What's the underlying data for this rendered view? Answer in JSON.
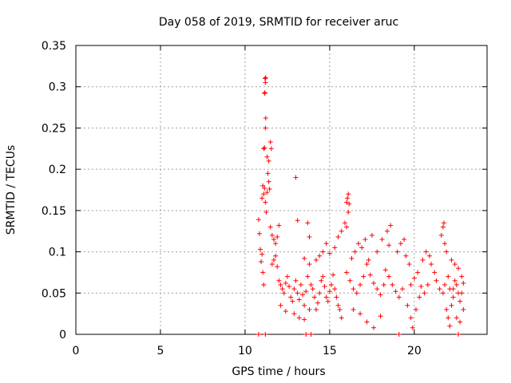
{
  "chart_data": {
    "type": "scatter",
    "title": "Day 058 of 2019, SRMTID for receiver aruc",
    "xlabel": "GPS time / hours",
    "ylabel": "SRMTID / TECUs",
    "xlim": [
      0,
      24.3
    ],
    "ylim": [
      0,
      0.35
    ],
    "xticks": [
      0,
      5,
      10,
      15,
      20
    ],
    "xtick_labels": [
      "0",
      "5",
      "10",
      "15",
      "20"
    ],
    "yticks": [
      0,
      0.05,
      0.1,
      0.15,
      0.2,
      0.25,
      0.3,
      0.35
    ],
    "ytick_labels": [
      "0",
      "0.05",
      "0.1",
      "0.15",
      "0.2",
      "0.25",
      "0.3",
      "0.35"
    ],
    "grid": true,
    "marker": "plus",
    "series": [
      {
        "name": "SRMTID",
        "color": "#ff0000",
        "points": [
          [
            10.8,
            0.0
          ],
          [
            11.2,
            0.0
          ],
          [
            13.6,
            0.0
          ],
          [
            13.9,
            0.0
          ],
          [
            19.1,
            0.0
          ],
          [
            22.6,
            0.0
          ],
          [
            10.8,
            0.139
          ],
          [
            10.85,
            0.122
          ],
          [
            10.9,
            0.103
          ],
          [
            10.95,
            0.088
          ],
          [
            11.0,
            0.097
          ],
          [
            11.05,
            0.075
          ],
          [
            11.1,
            0.06
          ],
          [
            11.0,
            0.165
          ],
          [
            11.05,
            0.18
          ],
          [
            11.1,
            0.17
          ],
          [
            11.15,
            0.177
          ],
          [
            11.2,
            0.16
          ],
          [
            11.25,
            0.148
          ],
          [
            11.3,
            0.172
          ],
          [
            11.35,
            0.195
          ],
          [
            11.4,
            0.185
          ],
          [
            11.45,
            0.176
          ],
          [
            11.1,
            0.225
          ],
          [
            11.15,
            0.226
          ],
          [
            11.2,
            0.25
          ],
          [
            11.22,
            0.262
          ],
          [
            11.15,
            0.292
          ],
          [
            11.17,
            0.293
          ],
          [
            11.18,
            0.31
          ],
          [
            11.22,
            0.311
          ],
          [
            11.2,
            0.305
          ],
          [
            11.3,
            0.215
          ],
          [
            11.4,
            0.21
          ],
          [
            11.5,
            0.233
          ],
          [
            11.55,
            0.225
          ],
          [
            11.5,
            0.13
          ],
          [
            11.6,
            0.12
          ],
          [
            11.7,
            0.115
          ],
          [
            11.8,
            0.11
          ],
          [
            11.9,
            0.118
          ],
          [
            12.0,
            0.132
          ],
          [
            11.6,
            0.085
          ],
          [
            11.7,
            0.09
          ],
          [
            11.8,
            0.095
          ],
          [
            11.9,
            0.082
          ],
          [
            12.0,
            0.065
          ],
          [
            12.1,
            0.06
          ],
          [
            12.2,
            0.055
          ],
          [
            12.3,
            0.05
          ],
          [
            12.4,
            0.062
          ],
          [
            12.5,
            0.07
          ],
          [
            12.6,
            0.058
          ],
          [
            12.7,
            0.045
          ],
          [
            12.8,
            0.04
          ],
          [
            12.9,
            0.055
          ],
          [
            13.0,
            0.065
          ],
          [
            13.1,
            0.05
          ],
          [
            13.2,
            0.042
          ],
          [
            13.3,
            0.06
          ],
          [
            13.4,
            0.048
          ],
          [
            13.5,
            0.035
          ],
          [
            13.6,
            0.052
          ],
          [
            13.7,
            0.07
          ],
          [
            13.8,
            0.085
          ],
          [
            13.9,
            0.06
          ],
          [
            12.1,
            0.035
          ],
          [
            12.4,
            0.028
          ],
          [
            12.9,
            0.025
          ],
          [
            13.2,
            0.02
          ],
          [
            13.5,
            0.018
          ],
          [
            13.8,
            0.03
          ],
          [
            13.1,
            0.138
          ],
          [
            13.0,
            0.19
          ],
          [
            13.7,
            0.135
          ],
          [
            13.8,
            0.118
          ],
          [
            13.5,
            0.092
          ],
          [
            14.0,
            0.055
          ],
          [
            14.1,
            0.045
          ],
          [
            14.2,
            0.03
          ],
          [
            14.3,
            0.038
          ],
          [
            14.4,
            0.05
          ],
          [
            14.5,
            0.065
          ],
          [
            14.6,
            0.07
          ],
          [
            14.7,
            0.058
          ],
          [
            14.8,
            0.045
          ],
          [
            14.9,
            0.04
          ],
          [
            15.0,
            0.052
          ],
          [
            15.1,
            0.06
          ],
          [
            15.2,
            0.072
          ],
          [
            15.3,
            0.055
          ],
          [
            15.4,
            0.045
          ],
          [
            15.5,
            0.035
          ],
          [
            15.6,
            0.03
          ],
          [
            15.7,
            0.02
          ],
          [
            14.2,
            0.09
          ],
          [
            14.4,
            0.095
          ],
          [
            14.6,
            0.1
          ],
          [
            14.8,
            0.11
          ],
          [
            15.0,
            0.098
          ],
          [
            15.3,
            0.105
          ],
          [
            15.5,
            0.118
          ],
          [
            15.7,
            0.125
          ],
          [
            15.9,
            0.135
          ],
          [
            16.0,
            0.13
          ],
          [
            16.1,
            0.148
          ],
          [
            16.0,
            0.16
          ],
          [
            16.05,
            0.165
          ],
          [
            16.1,
            0.17
          ],
          [
            16.15,
            0.158
          ],
          [
            16.0,
            0.075
          ],
          [
            16.2,
            0.065
          ],
          [
            16.4,
            0.055
          ],
          [
            16.6,
            0.05
          ],
          [
            16.8,
            0.06
          ],
          [
            17.0,
            0.07
          ],
          [
            17.2,
            0.085
          ],
          [
            17.4,
            0.072
          ],
          [
            17.6,
            0.062
          ],
          [
            17.8,
            0.055
          ],
          [
            18.0,
            0.048
          ],
          [
            18.2,
            0.06
          ],
          [
            16.3,
            0.092
          ],
          [
            16.5,
            0.1
          ],
          [
            16.7,
            0.11
          ],
          [
            16.9,
            0.105
          ],
          [
            17.1,
            0.115
          ],
          [
            17.3,
            0.09
          ],
          [
            16.4,
            0.03
          ],
          [
            16.8,
            0.025
          ],
          [
            17.2,
            0.015
          ],
          [
            17.6,
            0.008
          ],
          [
            18.0,
            0.022
          ],
          [
            17.5,
            0.12
          ],
          [
            17.8,
            0.1
          ],
          [
            18.1,
            0.115
          ],
          [
            18.4,
            0.125
          ],
          [
            18.6,
            0.132
          ],
          [
            18.5,
            0.108
          ],
          [
            18.3,
            0.078
          ],
          [
            18.5,
            0.07
          ],
          [
            18.7,
            0.06
          ],
          [
            18.9,
            0.052
          ],
          [
            19.1,
            0.045
          ],
          [
            19.3,
            0.055
          ],
          [
            19.0,
            0.1
          ],
          [
            19.2,
            0.11
          ],
          [
            19.4,
            0.115
          ],
          [
            19.5,
            0.095
          ],
          [
            19.7,
            0.085
          ],
          [
            19.6,
            0.035
          ],
          [
            19.8,
            0.02
          ],
          [
            19.9,
            0.008
          ],
          [
            20.1,
            0.03
          ],
          [
            20.3,
            0.045
          ],
          [
            19.8,
            0.06
          ],
          [
            20.0,
            0.068
          ],
          [
            20.2,
            0.075
          ],
          [
            20.4,
            0.058
          ],
          [
            20.6,
            0.05
          ],
          [
            20.8,
            0.06
          ],
          [
            20.5,
            0.09
          ],
          [
            20.7,
            0.1
          ],
          [
            20.9,
            0.095
          ],
          [
            21.0,
            0.085
          ],
          [
            21.2,
            0.075
          ],
          [
            21.3,
            0.065
          ],
          [
            21.5,
            0.055
          ],
          [
            21.7,
            0.05
          ],
          [
            21.8,
            0.06
          ],
          [
            22.0,
            0.07
          ],
          [
            22.1,
            0.055
          ],
          [
            21.6,
            0.12
          ],
          [
            21.7,
            0.13
          ],
          [
            21.75,
            0.135
          ],
          [
            21.8,
            0.11
          ],
          [
            21.9,
            0.1
          ],
          [
            21.9,
            0.03
          ],
          [
            22.0,
            0.02
          ],
          [
            22.1,
            0.01
          ],
          [
            22.2,
            0.035
          ],
          [
            22.3,
            0.045
          ],
          [
            22.3,
            0.055
          ],
          [
            22.4,
            0.065
          ],
          [
            22.5,
            0.06
          ],
          [
            22.6,
            0.05
          ],
          [
            22.7,
            0.04
          ],
          [
            22.8,
            0.05
          ],
          [
            22.2,
            0.09
          ],
          [
            22.4,
            0.085
          ],
          [
            22.6,
            0.08
          ],
          [
            22.8,
            0.07
          ],
          [
            22.9,
            0.062
          ],
          [
            22.5,
            0.02
          ],
          [
            22.7,
            0.015
          ],
          [
            22.9,
            0.03
          ]
        ]
      }
    ]
  }
}
